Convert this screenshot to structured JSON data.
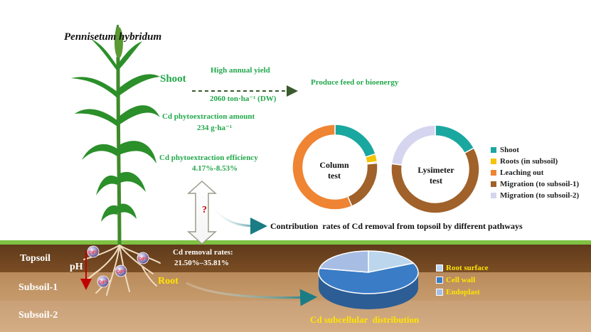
{
  "plant_name": "Pennisetum hybridum",
  "shoot_label": "Shoot",
  "yield": {
    "title": "High annual yield",
    "value": "2060 ton·ha⁻¹ (DW)"
  },
  "use_label": "Produce feed or bioenergy",
  "phytoextraction_amount": {
    "title": "Cd phytoextraction amount",
    "value": "234 g·ha⁻¹"
  },
  "phytoextraction_efficiency": {
    "title": "Cd phytoextraction efficiency",
    "value": "4.17%-8.53%"
  },
  "question_mark": "?",
  "contribution_title": "Contribution  rates of Cd removal from topsoil by different pathways",
  "soil": {
    "topsoil": "Topsoil",
    "subsoil1": "Subsoil-1",
    "subsoil2": "Subsoil-2"
  },
  "ph_label": "pH",
  "cd_ion_label": "Cd²⁺",
  "root_label": "Root",
  "removal_rates": {
    "title": "Cd removal rates:",
    "value": "21.50%–35.81%"
  },
  "subcellular_title": "Cd subcellular  distribution",
  "chart_data": [
    {
      "type": "pie",
      "name": "column-test",
      "center_label": [
        "Column",
        "test"
      ],
      "categories": [
        "Shoot",
        "Roots (in subsoil)",
        "Leaching out",
        "Migration (to subsoil-1)",
        "Migration (to subsoil-2)"
      ],
      "values": [
        20,
        3,
        0.5,
        20,
        56.5
      ],
      "colors": [
        "#1aa7a0",
        "#f5c400",
        "#4472c4",
        "#a0612a",
        "#ef8433"
      ]
    },
    {
      "type": "pie",
      "name": "lysimeter-test",
      "center_label": [
        "Lysimeter",
        "test"
      ],
      "categories": [
        "Shoot",
        "Roots (in subsoil)",
        "Leaching out",
        "Migration (to subsoil-1)",
        "Migration (to subsoil-2)"
      ],
      "values": [
        17,
        0,
        0,
        60,
        23
      ],
      "colors": [
        "#1aa7a0",
        "#f5c400",
        "#4472c4",
        "#a0612a",
        "#d5d5f0"
      ]
    },
    {
      "type": "pie",
      "name": "cd-subcellular-distribution",
      "categories": [
        "Root surface",
        "Cell wall",
        "Endoplast"
      ],
      "values": [
        18,
        60,
        22
      ],
      "colors": [
        "#bcd6ee",
        "#3a7cc6",
        "#a7bde3"
      ]
    }
  ],
  "legend": [
    {
      "label": "Shoot",
      "color": "#1aa7a0"
    },
    {
      "label": "Roots (in subsoil)",
      "color": "#f5c400"
    },
    {
      "label": "Leaching out",
      "color": "#ef8433"
    },
    {
      "label": "Migration (to subsoil-1)",
      "color": "#a0612a"
    },
    {
      "label": "Migration (to subsoil-2)",
      "color": "#d5d5f0"
    }
  ],
  "pie_legend": [
    {
      "label": "Root surface",
      "color": "#bcd6ee"
    },
    {
      "label": "Cell wall",
      "color": "#3a7cc6"
    },
    {
      "label": "Endoplast",
      "color": "#a7bde3"
    }
  ]
}
